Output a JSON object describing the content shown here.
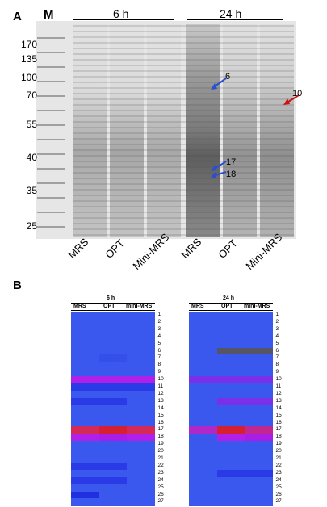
{
  "panel_a": {
    "letter": "A",
    "marker_label": "M",
    "timepoints": [
      "6 h",
      "24 h"
    ],
    "marker_sizes": [
      "170",
      "135",
      "100",
      "70",
      "55",
      "40",
      "35",
      "25"
    ],
    "lanes": [
      "MRS",
      "OPT",
      "Mini-MRS",
      "MRS",
      "OPT",
      "Mini-MRS"
    ],
    "annotations": [
      {
        "label": "6",
        "color": "#2b4fd0"
      },
      {
        "label": "10",
        "color": "#cc1111"
      },
      {
        "label": "17",
        "color": "#2b4fd0"
      },
      {
        "label": "18",
        "color": "#2b4fd0"
      }
    ]
  },
  "panel_b": {
    "letter": "B",
    "heatmaps": [
      {
        "title": "6 h",
        "columns": [
          "MRS",
          "OPT",
          "mini-MRS"
        ],
        "rows": [
          "1",
          "2",
          "3",
          "4",
          "5",
          "6",
          "7",
          "8",
          "9",
          "10",
          "11",
          "12",
          "13",
          "14",
          "15",
          "16",
          "17",
          "18",
          "19",
          "20",
          "21",
          "22",
          "23",
          "24",
          "25",
          "26",
          "27"
        ],
        "colors": [
          [
            "#3a57ee",
            "#3a57ee",
            "#3a57ee"
          ],
          [
            "#3a57ee",
            "#3a57ee",
            "#3a57ee"
          ],
          [
            "#3a57ee",
            "#3a57ee",
            "#3a57ee"
          ],
          [
            "#3a57ee",
            "#3a57ee",
            "#3a57ee"
          ],
          [
            "#3a57ee",
            "#3a57ee",
            "#3a57ee"
          ],
          [
            "#3a57ee",
            "#3a57ee",
            "#3a57ee"
          ],
          [
            "#3a57ee",
            "#3450e8",
            "#3a57ee"
          ],
          [
            "#3a57ee",
            "#3a57ee",
            "#3a57ee"
          ],
          [
            "#3a57ee",
            "#3a57ee",
            "#3a57ee"
          ],
          [
            "#b020e8",
            "#b020e8",
            "#b020e8"
          ],
          [
            "#2a3ae6",
            "#2a3ae6",
            "#2a3ae6"
          ],
          [
            "#3a57ee",
            "#3a57ee",
            "#3a57ee"
          ],
          [
            "#2a3ae6",
            "#2a3ae6",
            "#3a57ee"
          ],
          [
            "#3a57ee",
            "#3a57ee",
            "#3a57ee"
          ],
          [
            "#3a57ee",
            "#3a57ee",
            "#3a57ee"
          ],
          [
            "#3a57ee",
            "#3a57ee",
            "#3a57ee"
          ],
          [
            "#d42a5a",
            "#d42030",
            "#d42a5a"
          ],
          [
            "#b020e8",
            "#a81ee6",
            "#b020e8"
          ],
          [
            "#3a57ee",
            "#3a57ee",
            "#3a57ee"
          ],
          [
            "#3a57ee",
            "#3a57ee",
            "#3a57ee"
          ],
          [
            "#3a57ee",
            "#3a57ee",
            "#3a57ee"
          ],
          [
            "#2a3ae6",
            "#2a3ae6",
            "#3a57ee"
          ],
          [
            "#3a57ee",
            "#3a57ee",
            "#3a57ee"
          ],
          [
            "#2a3ae6",
            "#2a3ae6",
            "#3a57ee"
          ],
          [
            "#3a57ee",
            "#3a57ee",
            "#3a57ee"
          ],
          [
            "#2030e0",
            "#3a57ee",
            "#3a57ee"
          ],
          [
            "#3a57ee",
            "#3a57ee",
            "#3a57ee"
          ]
        ]
      },
      {
        "title": "24 h",
        "columns": [
          "MRS",
          "OPT",
          "mini-MRS"
        ],
        "rows": [
          "1",
          "2",
          "3",
          "4",
          "5",
          "6",
          "7",
          "8",
          "9",
          "10",
          "11",
          "12",
          "13",
          "14",
          "15",
          "16",
          "17",
          "18",
          "19",
          "20",
          "21",
          "22",
          "23",
          "24",
          "25",
          "26",
          "27"
        ],
        "colors": [
          [
            "#3a57ee",
            "#3a57ee",
            "#3a57ee"
          ],
          [
            "#3a57ee",
            "#3a57ee",
            "#3a57ee"
          ],
          [
            "#3a57ee",
            "#3a57ee",
            "#3a57ee"
          ],
          [
            "#3a57ee",
            "#3a57ee",
            "#3a57ee"
          ],
          [
            "#3a57ee",
            "#3a57ee",
            "#3a57ee"
          ],
          [
            "#3a57ee",
            "#555566",
            "#555566"
          ],
          [
            "#3a57ee",
            "#3a57ee",
            "#3a57ee"
          ],
          [
            "#3a57ee",
            "#3a57ee",
            "#3a57ee"
          ],
          [
            "#3a57ee",
            "#3a57ee",
            "#3a57ee"
          ],
          [
            "#7a30e8",
            "#7a30e8",
            "#7a30e8"
          ],
          [
            "#3a57ee",
            "#3a57ee",
            "#3a57ee"
          ],
          [
            "#3a57ee",
            "#3a57ee",
            "#3a57ee"
          ],
          [
            "#3a57ee",
            "#7a30e8",
            "#7a30e8"
          ],
          [
            "#3a57ee",
            "#3a57ee",
            "#3a57ee"
          ],
          [
            "#3a57ee",
            "#3a57ee",
            "#3a57ee"
          ],
          [
            "#3a57ee",
            "#3a57ee",
            "#3a57ee"
          ],
          [
            "#b028c8",
            "#d42030",
            "#c02890"
          ],
          [
            "#3a57ee",
            "#b020e8",
            "#a81ee6"
          ],
          [
            "#3a57ee",
            "#3a57ee",
            "#3a57ee"
          ],
          [
            "#3a57ee",
            "#3a57ee",
            "#3a57ee"
          ],
          [
            "#3a57ee",
            "#3a57ee",
            "#3a57ee"
          ],
          [
            "#3a57ee",
            "#3a57ee",
            "#3a57ee"
          ],
          [
            "#3a57ee",
            "#2a3ae6",
            "#2a3ae6"
          ],
          [
            "#3a57ee",
            "#3a57ee",
            "#3a57ee"
          ],
          [
            "#3a57ee",
            "#3a57ee",
            "#3a57ee"
          ],
          [
            "#3a57ee",
            "#3a57ee",
            "#3a57ee"
          ],
          [
            "#3a57ee",
            "#3a57ee",
            "#3a57ee"
          ]
        ]
      }
    ]
  }
}
